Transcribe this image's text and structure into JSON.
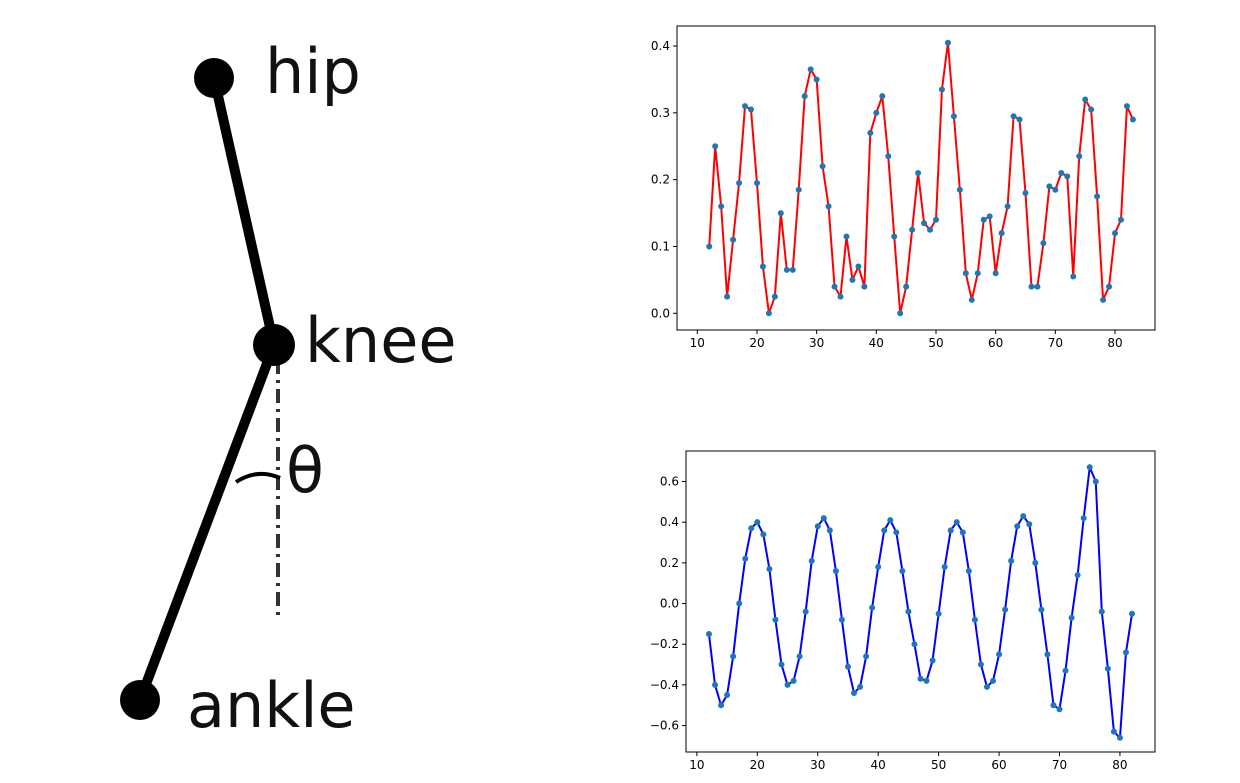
{
  "diagram": {
    "hip": "hip",
    "knee": "knee",
    "angle": "θ",
    "ankle": "ankle"
  },
  "chart_data": [
    {
      "type": "line",
      "color": "#ff0000",
      "marker_color": "#1f77b4",
      "x": [
        12,
        13,
        14,
        15,
        16,
        17,
        18,
        19,
        20,
        21,
        22,
        23,
        24,
        25,
        26,
        27,
        28,
        29,
        30,
        31,
        32,
        33,
        34,
        35,
        36,
        37,
        38,
        39,
        40,
        41,
        42,
        43,
        44,
        45,
        46,
        47,
        48,
        49,
        50,
        51,
        52,
        53,
        54,
        55,
        56,
        57,
        58,
        59,
        60,
        61,
        62,
        63,
        64,
        65,
        66,
        67,
        68,
        69,
        70,
        71,
        72,
        73,
        74,
        75,
        76,
        77,
        78,
        79,
        80,
        81,
        82,
        83
      ],
      "values": [
        0.1,
        0.25,
        0.16,
        0.025,
        0.11,
        0.195,
        0.31,
        0.305,
        0.195,
        0.07,
        0.0,
        0.025,
        0.15,
        0.065,
        0.065,
        0.185,
        0.325,
        0.365,
        0.35,
        0.22,
        0.16,
        0.04,
        0.025,
        0.115,
        0.05,
        0.07,
        0.04,
        0.27,
        0.3,
        0.325,
        0.235,
        0.115,
        0.0,
        0.04,
        0.125,
        0.21,
        0.135,
        0.125,
        0.14,
        0.335,
        0.405,
        0.295,
        0.185,
        0.06,
        0.02,
        0.06,
        0.14,
        0.145,
        0.06,
        0.12,
        0.16,
        0.295,
        0.29,
        0.18,
        0.04,
        0.04,
        0.105,
        0.19,
        0.185,
        0.21,
        0.205,
        0.055,
        0.235,
        0.32,
        0.305,
        0.175,
        0.02,
        0.04,
        0.12,
        0.14,
        0.31,
        0.29
      ],
      "xlim": [
        6.6,
        86.7
      ],
      "ylim": [
        -0.025,
        0.43
      ],
      "xticks": [
        10,
        20,
        30,
        40,
        50,
        60,
        70,
        80
      ],
      "yticks": [
        {
          "value": 0,
          "label": "0.0"
        },
        0.1,
        0.2,
        0.3,
        0.4
      ]
    },
    {
      "type": "line",
      "color": "#0000ff",
      "marker_color": "#1f77b4",
      "x": [
        12,
        13,
        14,
        15,
        16,
        17,
        18,
        19,
        20,
        21,
        22,
        23,
        24,
        25,
        26,
        27,
        28,
        29,
        30,
        31,
        32,
        33,
        34,
        35,
        36,
        37,
        38,
        39,
        40,
        41,
        42,
        43,
        44,
        45,
        46,
        47,
        48,
        49,
        50,
        51,
        52,
        53,
        54,
        55,
        56,
        57,
        58,
        59,
        60,
        61,
        62,
        63,
        64,
        65,
        66,
        67,
        68,
        69,
        70,
        71,
        72,
        73,
        74,
        75,
        76,
        77,
        78,
        79,
        80,
        81,
        82
      ],
      "values": [
        -0.15,
        -0.4,
        -0.5,
        -0.45,
        -0.26,
        0.0,
        0.22,
        0.37,
        0.4,
        0.34,
        0.17,
        -0.08,
        -0.3,
        -0.4,
        -0.38,
        -0.26,
        -0.04,
        0.21,
        0.38,
        0.42,
        0.36,
        0.16,
        -0.08,
        -0.31,
        -0.44,
        -0.41,
        -0.26,
        -0.02,
        0.18,
        0.36,
        0.41,
        0.35,
        0.16,
        -0.04,
        -0.2,
        -0.37,
        -0.38,
        -0.28,
        -0.05,
        0.18,
        0.36,
        0.4,
        0.35,
        0.16,
        -0.08,
        -0.3,
        -0.41,
        -0.38,
        -0.25,
        -0.03,
        0.21,
        0.38,
        0.43,
        0.39,
        0.2,
        -0.03,
        -0.25,
        -0.5,
        -0.52,
        -0.33,
        -0.07,
        0.14,
        0.42,
        0.67,
        0.6,
        -0.04,
        -0.32,
        -0.63,
        -0.66,
        -0.24,
        -0.05
      ],
      "xlim": [
        8.2,
        85.8
      ],
      "ylim": [
        -0.73,
        0.75
      ],
      "xticks": [
        10,
        20,
        30,
        40,
        50,
        60,
        70,
        80
      ],
      "yticks": [
        {
          "value": -0.6,
          "label": "−0.6"
        },
        {
          "value": -0.4,
          "label": "−0.4"
        },
        {
          "value": -0.2,
          "label": "−0.2"
        },
        {
          "value": 0,
          "label": "0.0"
        },
        0.2,
        0.4,
        0.6
      ]
    }
  ]
}
